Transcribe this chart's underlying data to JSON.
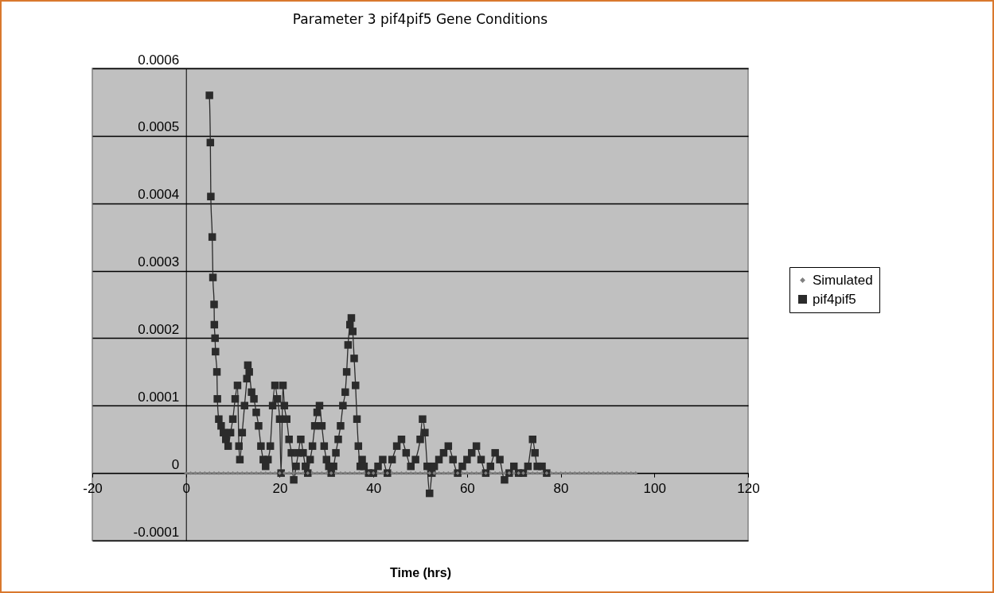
{
  "chart_data": {
    "type": "line",
    "title": "Parameter 3 pif4pif5 Gene Conditions",
    "xlabel": "Time (hrs)",
    "xlim": [
      -20,
      120
    ],
    "xticks": [
      -20,
      0,
      20,
      40,
      60,
      80,
      100,
      120
    ],
    "ylim": [
      -0.0001,
      0.0006
    ],
    "yticks": [
      -0.0001,
      0,
      0.0001,
      0.0002,
      0.0003,
      0.0004,
      0.0005,
      0.0006
    ],
    "grid": "y",
    "legend": "right",
    "line_style": "solid",
    "series": [
      {
        "name": "Simulated",
        "color": "#808080",
        "marker": "diamond",
        "x": [
          0,
          1,
          2,
          3,
          4,
          5,
          6,
          7,
          8,
          9,
          10,
          11,
          12,
          13,
          14,
          15,
          16,
          17,
          18,
          19,
          20,
          21,
          22,
          23,
          24,
          25,
          26,
          27,
          28,
          29,
          30,
          31,
          32,
          33,
          34,
          35,
          36,
          37,
          38,
          39,
          40,
          41,
          42,
          43,
          44,
          45,
          46,
          47,
          48,
          49,
          50,
          51,
          52,
          53,
          54,
          55,
          56,
          57,
          58,
          59,
          60,
          61,
          62,
          63,
          64,
          65,
          66,
          67,
          68,
          69,
          70,
          71,
          72,
          73,
          74,
          75,
          76,
          77,
          78,
          79,
          80,
          81,
          82,
          83,
          84,
          85,
          86,
          87,
          88,
          89,
          90,
          91,
          92,
          93,
          94,
          95,
          96
        ],
        "values": [
          0,
          0,
          0,
          0,
          0,
          0,
          0,
          0,
          0,
          0,
          0,
          0,
          0,
          0,
          0,
          0,
          0,
          0,
          0,
          0,
          0,
          0,
          0,
          0,
          0,
          0,
          0,
          0,
          0,
          0,
          0,
          0,
          0,
          0,
          0,
          0,
          0,
          0,
          0,
          0,
          0,
          0,
          0,
          0,
          0,
          0,
          0,
          0,
          0,
          0,
          0,
          0,
          0,
          0,
          0,
          0,
          0,
          0,
          0,
          0,
          0,
          0,
          0,
          0,
          0,
          0,
          0,
          0,
          0,
          0,
          0,
          0,
          0,
          0,
          0,
          0,
          0,
          0,
          0,
          0,
          0,
          0,
          0,
          0,
          0,
          0,
          0,
          0,
          0,
          0,
          0,
          0,
          0,
          0,
          0,
          0,
          0
        ]
      },
      {
        "name": "pif4pif5",
        "color": "#2b2b2b",
        "marker": "square",
        "x": [
          5,
          5.2,
          5.3,
          5.6,
          5.75,
          6,
          6.05,
          6.2,
          6.3,
          6.6,
          6.7,
          7,
          7.5,
          8,
          8.5,
          9,
          9.5,
          10,
          10.5,
          11,
          11.3,
          11.5,
          12,
          12.5,
          13,
          13.2,
          13.5,
          14,
          14.5,
          15,
          15.5,
          16,
          16.5,
          17,
          17.5,
          18,
          18.5,
          19,
          19.5,
          20,
          20.3,
          20.7,
          21,
          21.5,
          22,
          22.5,
          23,
          23.5,
          24,
          24.5,
          25,
          25.5,
          26,
          26.5,
          27,
          27.5,
          28,
          28.5,
          29,
          29.5,
          30,
          30.5,
          31,
          31.5,
          32,
          32.5,
          33,
          33.5,
          34,
          34.3,
          34.6,
          35,
          35.3,
          35.6,
          35.9,
          36.2,
          36.5,
          36.8,
          37.2,
          37.6,
          38,
          39,
          40,
          41,
          42,
          43,
          44,
          45,
          46,
          47,
          48,
          49,
          50,
          50.5,
          51,
          51.5,
          52,
          52.5,
          53,
          54,
          55,
          56,
          57,
          58,
          59,
          60,
          61,
          62,
          63,
          64,
          65,
          66,
          67,
          68,
          69,
          70,
          71,
          72,
          73,
          74,
          74.5,
          75,
          76,
          77
        ],
        "values": [
          0.00056,
          0.00049,
          0.00041,
          0.00035,
          0.00029,
          0.00025,
          0.00022,
          0.0002,
          0.00018,
          0.00015,
          0.00011,
          8e-05,
          7e-05,
          6e-05,
          5e-05,
          4e-05,
          6e-05,
          8e-05,
          0.00011,
          0.00013,
          4e-05,
          2e-05,
          6e-05,
          0.0001,
          0.00014,
          0.00016,
          0.00015,
          0.00012,
          0.00011,
          9e-05,
          7e-05,
          4e-05,
          2e-05,
          1e-05,
          2e-05,
          4e-05,
          0.0001,
          0.00013,
          0.00011,
          8e-05,
          0,
          0.00013,
          0.0001,
          8e-05,
          5e-05,
          3e-05,
          -1e-05,
          1e-05,
          3e-05,
          5e-05,
          3e-05,
          1e-05,
          0,
          2e-05,
          4e-05,
          7e-05,
          9e-05,
          0.0001,
          7e-05,
          4e-05,
          2e-05,
          1e-05,
          0,
          1e-05,
          3e-05,
          5e-05,
          7e-05,
          0.0001,
          0.00012,
          0.00015,
          0.00019,
          0.00022,
          0.00023,
          0.00021,
          0.00017,
          0.00013,
          8e-05,
          4e-05,
          1e-05,
          2e-05,
          1e-05,
          0,
          0,
          1e-05,
          2e-05,
          0,
          2e-05,
          4e-05,
          5e-05,
          3e-05,
          1e-05,
          2e-05,
          5e-05,
          8e-05,
          6e-05,
          1e-05,
          -3e-05,
          0,
          1e-05,
          2e-05,
          3e-05,
          4e-05,
          2e-05,
          0,
          1e-05,
          2e-05,
          3e-05,
          4e-05,
          2e-05,
          0,
          1e-05,
          3e-05,
          2e-05,
          -1e-05,
          0,
          1e-05,
          0,
          0,
          1e-05,
          5e-05,
          3e-05,
          1e-05,
          1e-05,
          0
        ]
      }
    ]
  }
}
